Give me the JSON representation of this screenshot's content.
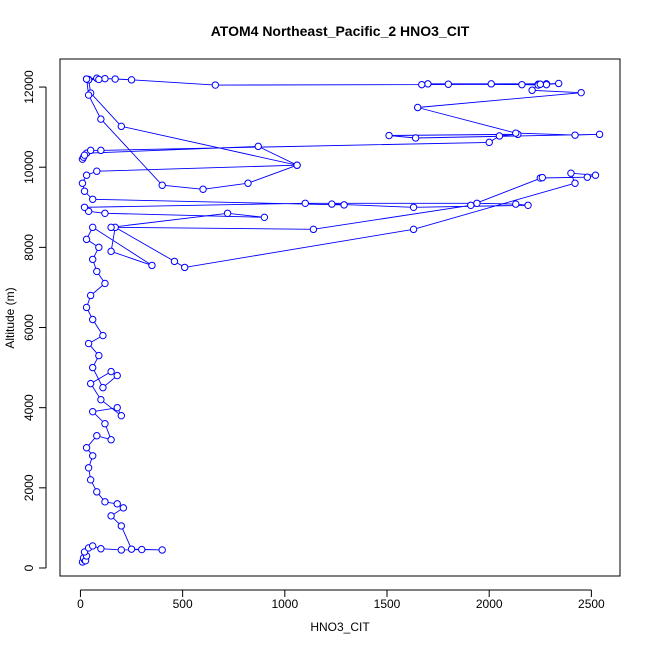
{
  "chart_data": {
    "type": "line",
    "title": "ATOM4 Northeast_Pacific_2 HNO3_CIT",
    "xlabel": "HNO3_CIT",
    "ylabel": "Altitude (m)",
    "xlim": [
      -100,
      2640
    ],
    "ylim": [
      -200,
      12700
    ],
    "xticks": [
      0,
      500,
      1000,
      1500,
      2000,
      2500
    ],
    "yticks": [
      0,
      2000,
      4000,
      6000,
      8000,
      10000,
      12000
    ],
    "grid": false,
    "legend": "none",
    "series": [
      {
        "color": "#0000ff",
        "marker": "open-circle",
        "points": [
          [
            10,
            150
          ],
          [
            20,
            200
          ],
          [
            15,
            250
          ],
          [
            25,
            180
          ],
          [
            30,
            300
          ],
          [
            20,
            400
          ],
          [
            40,
            500
          ],
          [
            60,
            550
          ],
          [
            100,
            480
          ],
          [
            200,
            450
          ],
          [
            300,
            460
          ],
          [
            400,
            450
          ],
          [
            250,
            470
          ],
          [
            200,
            1050
          ],
          [
            150,
            1300
          ],
          [
            210,
            1500
          ],
          [
            180,
            1600
          ],
          [
            120,
            1650
          ],
          [
            80,
            1900
          ],
          [
            50,
            2200
          ],
          [
            40,
            2500
          ],
          [
            60,
            2800
          ],
          [
            30,
            3000
          ],
          [
            80,
            3300
          ],
          [
            150,
            3200
          ],
          [
            120,
            3600
          ],
          [
            60,
            3900
          ],
          [
            180,
            4000
          ],
          [
            200,
            3800
          ],
          [
            100,
            4200
          ],
          [
            50,
            4600
          ],
          [
            150,
            4900
          ],
          [
            180,
            4800
          ],
          [
            110,
            4500
          ],
          [
            60,
            5000
          ],
          [
            90,
            5300
          ],
          [
            40,
            5600
          ],
          [
            110,
            5800
          ],
          [
            60,
            6200
          ],
          [
            30,
            6500
          ],
          [
            50,
            6800
          ],
          [
            120,
            7100
          ],
          [
            80,
            7400
          ],
          [
            60,
            7700
          ],
          [
            90,
            8000
          ],
          [
            30,
            8200
          ],
          [
            60,
            8500
          ],
          [
            350,
            7550
          ],
          [
            150,
            7900
          ],
          [
            170,
            8500
          ],
          [
            460,
            7650
          ],
          [
            510,
            7500
          ],
          [
            1630,
            8450
          ],
          [
            2420,
            9600
          ],
          [
            2400,
            9850
          ],
          [
            2520,
            9800
          ],
          [
            2480,
            9750
          ],
          [
            2250,
            9730
          ],
          [
            2260,
            9740
          ],
          [
            1910,
            9050
          ],
          [
            1140,
            8450
          ],
          [
            150,
            8500
          ],
          [
            720,
            8850
          ],
          [
            900,
            8750
          ],
          [
            120,
            8850
          ],
          [
            40,
            8900
          ],
          [
            20,
            9000
          ],
          [
            1100,
            9100
          ],
          [
            1940,
            9100
          ],
          [
            2130,
            9080
          ],
          [
            2190,
            9050
          ],
          [
            1630,
            9000
          ],
          [
            1230,
            9080
          ],
          [
            1290,
            9060
          ],
          [
            60,
            9200
          ],
          [
            20,
            9400
          ],
          [
            10,
            9600
          ],
          [
            30,
            9800
          ],
          [
            80,
            9900
          ],
          [
            1060,
            10050
          ],
          [
            870,
            10520
          ],
          [
            30,
            10350
          ],
          [
            10,
            10200
          ],
          [
            15,
            10250
          ],
          [
            20,
            10300
          ],
          [
            50,
            10420
          ],
          [
            100,
            10420
          ],
          [
            2000,
            10620
          ],
          [
            2050,
            10780
          ],
          [
            2140,
            10820
          ],
          [
            1510,
            10790
          ],
          [
            1640,
            10730
          ],
          [
            2540,
            10820
          ],
          [
            2420,
            10800
          ],
          [
            2130,
            10850
          ],
          [
            1650,
            11490
          ],
          [
            2450,
            11860
          ],
          [
            2210,
            11920
          ],
          [
            2240,
            12070
          ],
          [
            2280,
            12080
          ],
          [
            2010,
            12080
          ],
          [
            1700,
            12080
          ],
          [
            1670,
            12060
          ],
          [
            1800,
            12070
          ],
          [
            2160,
            12060
          ],
          [
            2240,
            12050
          ],
          [
            2280,
            12060
          ],
          [
            2340,
            12090
          ],
          [
            2250,
            12070
          ],
          [
            660,
            12050
          ],
          [
            250,
            12180
          ],
          [
            170,
            12200
          ],
          [
            120,
            12210
          ],
          [
            80,
            12220
          ],
          [
            30,
            12200
          ],
          [
            40,
            12190
          ],
          [
            90,
            12190
          ],
          [
            40,
            12180
          ],
          [
            50,
            11850
          ],
          [
            200,
            11020
          ],
          [
            1060,
            10050
          ],
          [
            820,
            9600
          ],
          [
            600,
            9450
          ],
          [
            400,
            9550
          ],
          [
            100,
            11200
          ],
          [
            40,
            11800
          ],
          [
            30,
            12200
          ]
        ]
      }
    ]
  }
}
